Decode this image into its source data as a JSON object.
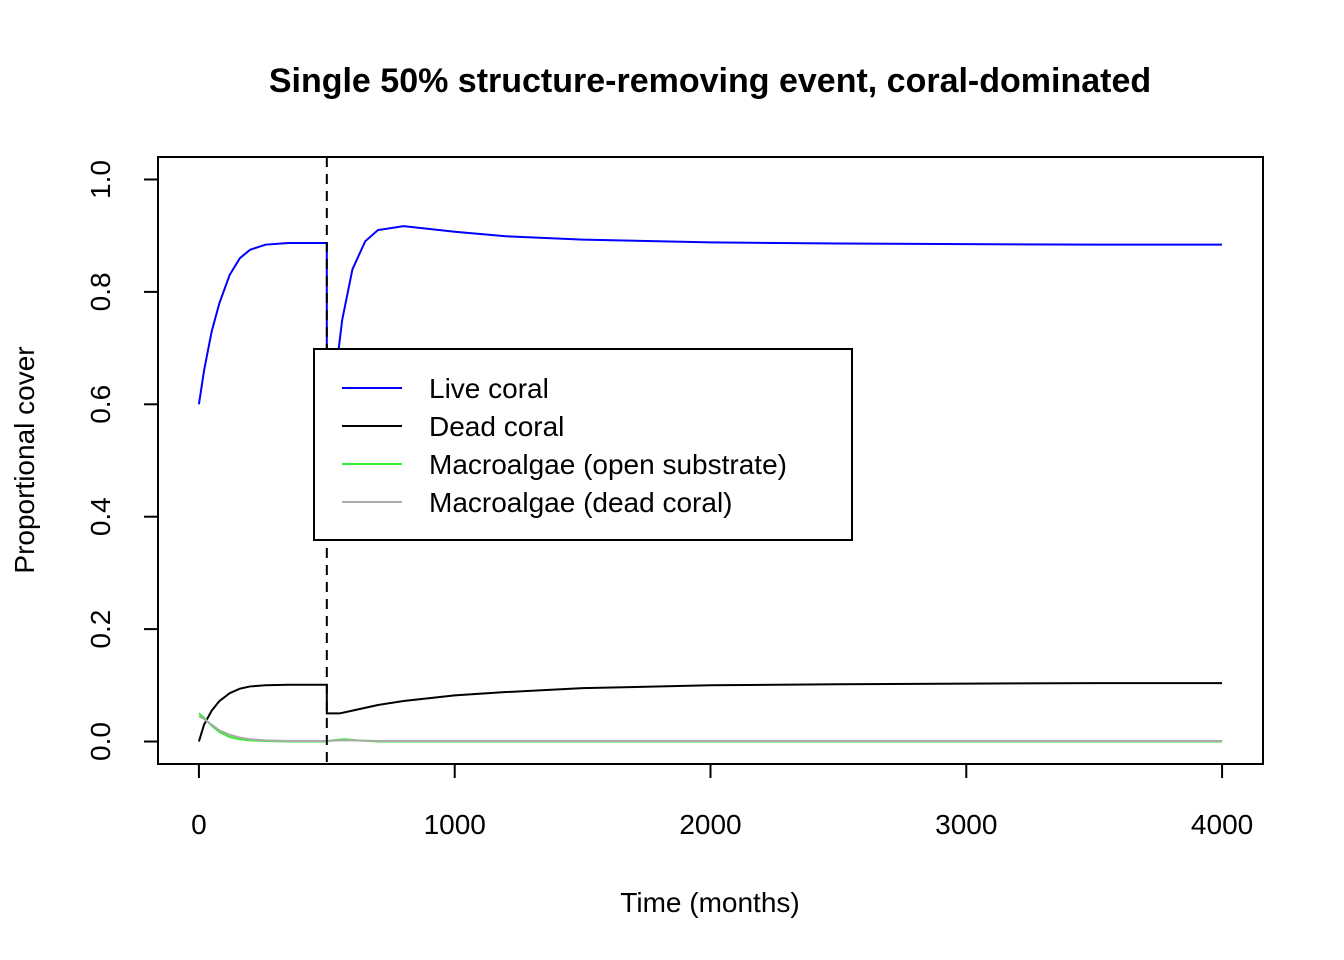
{
  "chart_data": {
    "type": "line",
    "title": "Single 50% structure-removing event, coral-dominated",
    "xlabel": "Time (months)",
    "ylabel": "Proportional cover",
    "xlim": [
      -160,
      4160
    ],
    "ylim": [
      -0.04,
      1.04
    ],
    "xticks": [
      0,
      1000,
      2000,
      3000,
      4000
    ],
    "xtick_labels": [
      "0",
      "1000",
      "2000",
      "3000",
      "4000"
    ],
    "yticks": [
      0.0,
      0.2,
      0.4,
      0.6,
      0.8,
      1.0
    ],
    "ytick_labels": [
      "0.0",
      "0.2",
      "0.4",
      "0.6",
      "0.8",
      "1.0"
    ],
    "grid": false,
    "legend_position": "center-left",
    "event_line": {
      "x": 500,
      "style": "dashed",
      "color": "#000000"
    },
    "series": [
      {
        "name": "Live coral",
        "color": "#0000ff",
        "points": [
          [
            0,
            0.6
          ],
          [
            20,
            0.66
          ],
          [
            50,
            0.73
          ],
          [
            80,
            0.78
          ],
          [
            120,
            0.83
          ],
          [
            160,
            0.86
          ],
          [
            200,
            0.875
          ],
          [
            260,
            0.884
          ],
          [
            350,
            0.887
          ],
          [
            500,
            0.887
          ],
          [
            500,
            0.5
          ],
          [
            520,
            0.6
          ],
          [
            560,
            0.75
          ],
          [
            600,
            0.84
          ],
          [
            650,
            0.89
          ],
          [
            700,
            0.91
          ],
          [
            800,
            0.917
          ],
          [
            1000,
            0.907
          ],
          [
            1200,
            0.899
          ],
          [
            1500,
            0.893
          ],
          [
            2000,
            0.888
          ],
          [
            2500,
            0.886
          ],
          [
            3000,
            0.885
          ],
          [
            3500,
            0.884
          ],
          [
            4000,
            0.884
          ]
        ]
      },
      {
        "name": "Dead coral",
        "color": "#000000",
        "points": [
          [
            0,
            0.0
          ],
          [
            20,
            0.03
          ],
          [
            50,
            0.055
          ],
          [
            80,
            0.072
          ],
          [
            120,
            0.086
          ],
          [
            160,
            0.094
          ],
          [
            200,
            0.098
          ],
          [
            260,
            0.1
          ],
          [
            350,
            0.101
          ],
          [
            500,
            0.101
          ],
          [
            500,
            0.05
          ],
          [
            550,
            0.05
          ],
          [
            600,
            0.055
          ],
          [
            700,
            0.065
          ],
          [
            800,
            0.072
          ],
          [
            1000,
            0.082
          ],
          [
            1200,
            0.088
          ],
          [
            1500,
            0.095
          ],
          [
            2000,
            0.1
          ],
          [
            2500,
            0.102
          ],
          [
            3000,
            0.103
          ],
          [
            3500,
            0.104
          ],
          [
            4000,
            0.104
          ]
        ]
      },
      {
        "name": "Macroalgae (open substrate)",
        "color": "#33ee33",
        "points": [
          [
            0,
            0.05
          ],
          [
            20,
            0.042
          ],
          [
            50,
            0.028
          ],
          [
            80,
            0.017
          ],
          [
            120,
            0.008
          ],
          [
            160,
            0.004
          ],
          [
            200,
            0.002
          ],
          [
            260,
            0.001
          ],
          [
            350,
            0.0
          ],
          [
            500,
            0.0
          ],
          [
            520,
            0.002
          ],
          [
            570,
            0.004
          ],
          [
            620,
            0.002
          ],
          [
            700,
            0.0
          ],
          [
            1000,
            0.0
          ],
          [
            2000,
            0.0
          ],
          [
            3000,
            0.0
          ],
          [
            4000,
            0.0
          ]
        ]
      },
      {
        "name": "Macroalgae (dead coral)",
        "color": "#aaaaaa",
        "points": [
          [
            0,
            0.045
          ],
          [
            20,
            0.04
          ],
          [
            50,
            0.03
          ],
          [
            80,
            0.02
          ],
          [
            120,
            0.012
          ],
          [
            160,
            0.007
          ],
          [
            200,
            0.004
          ],
          [
            260,
            0.002
          ],
          [
            350,
            0.001
          ],
          [
            500,
            0.001
          ],
          [
            550,
            0.002
          ],
          [
            600,
            0.002
          ],
          [
            700,
            0.001
          ],
          [
            1000,
            0.001
          ],
          [
            2000,
            0.001
          ],
          [
            3000,
            0.001
          ],
          [
            4000,
            0.001
          ]
        ]
      }
    ]
  }
}
